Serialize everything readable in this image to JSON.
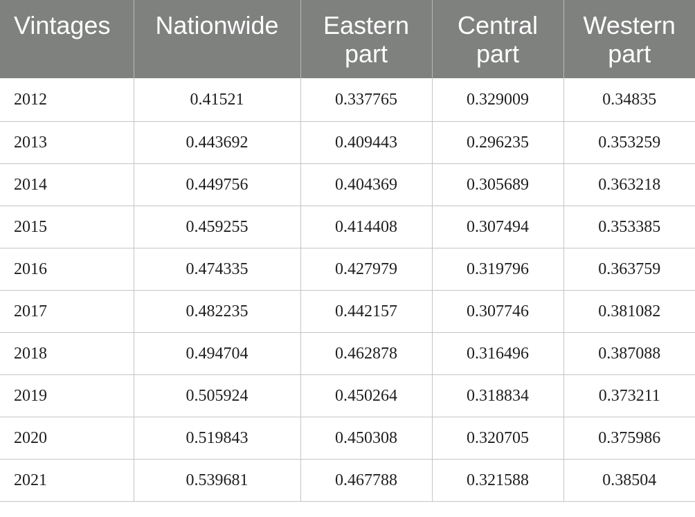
{
  "table": {
    "headers": [
      {
        "lines": [
          "Vintages"
        ]
      },
      {
        "lines": [
          "Nationwide"
        ]
      },
      {
        "lines": [
          "Eastern",
          "part"
        ]
      },
      {
        "lines": [
          "Central",
          "part"
        ]
      },
      {
        "lines": [
          "Western",
          "part"
        ]
      }
    ],
    "rows": [
      [
        "2012",
        "0.41521",
        "0.337765",
        "0.329009",
        "0.34835"
      ],
      [
        "2013",
        "0.443692",
        "0.409443",
        "0.296235",
        "0.353259"
      ],
      [
        "2014",
        "0.449756",
        "0.404369",
        "0.305689",
        "0.363218"
      ],
      [
        "2015",
        "0.459255",
        "0.414408",
        "0.307494",
        "0.353385"
      ],
      [
        "2016",
        "0.474335",
        "0.427979",
        "0.319796",
        "0.363759"
      ],
      [
        "2017",
        "0.482235",
        "0.442157",
        "0.307746",
        "0.381082"
      ],
      [
        "2018",
        "0.494704",
        "0.462878",
        "0.316496",
        "0.387088"
      ],
      [
        "2019",
        "0.505924",
        "0.450264",
        "0.318834",
        "0.373211"
      ],
      [
        "2020",
        "0.519843",
        "0.450308",
        "0.320705",
        "0.375986"
      ],
      [
        "2021",
        "0.539681",
        "0.467788",
        "0.321588",
        "0.38504"
      ]
    ]
  }
}
